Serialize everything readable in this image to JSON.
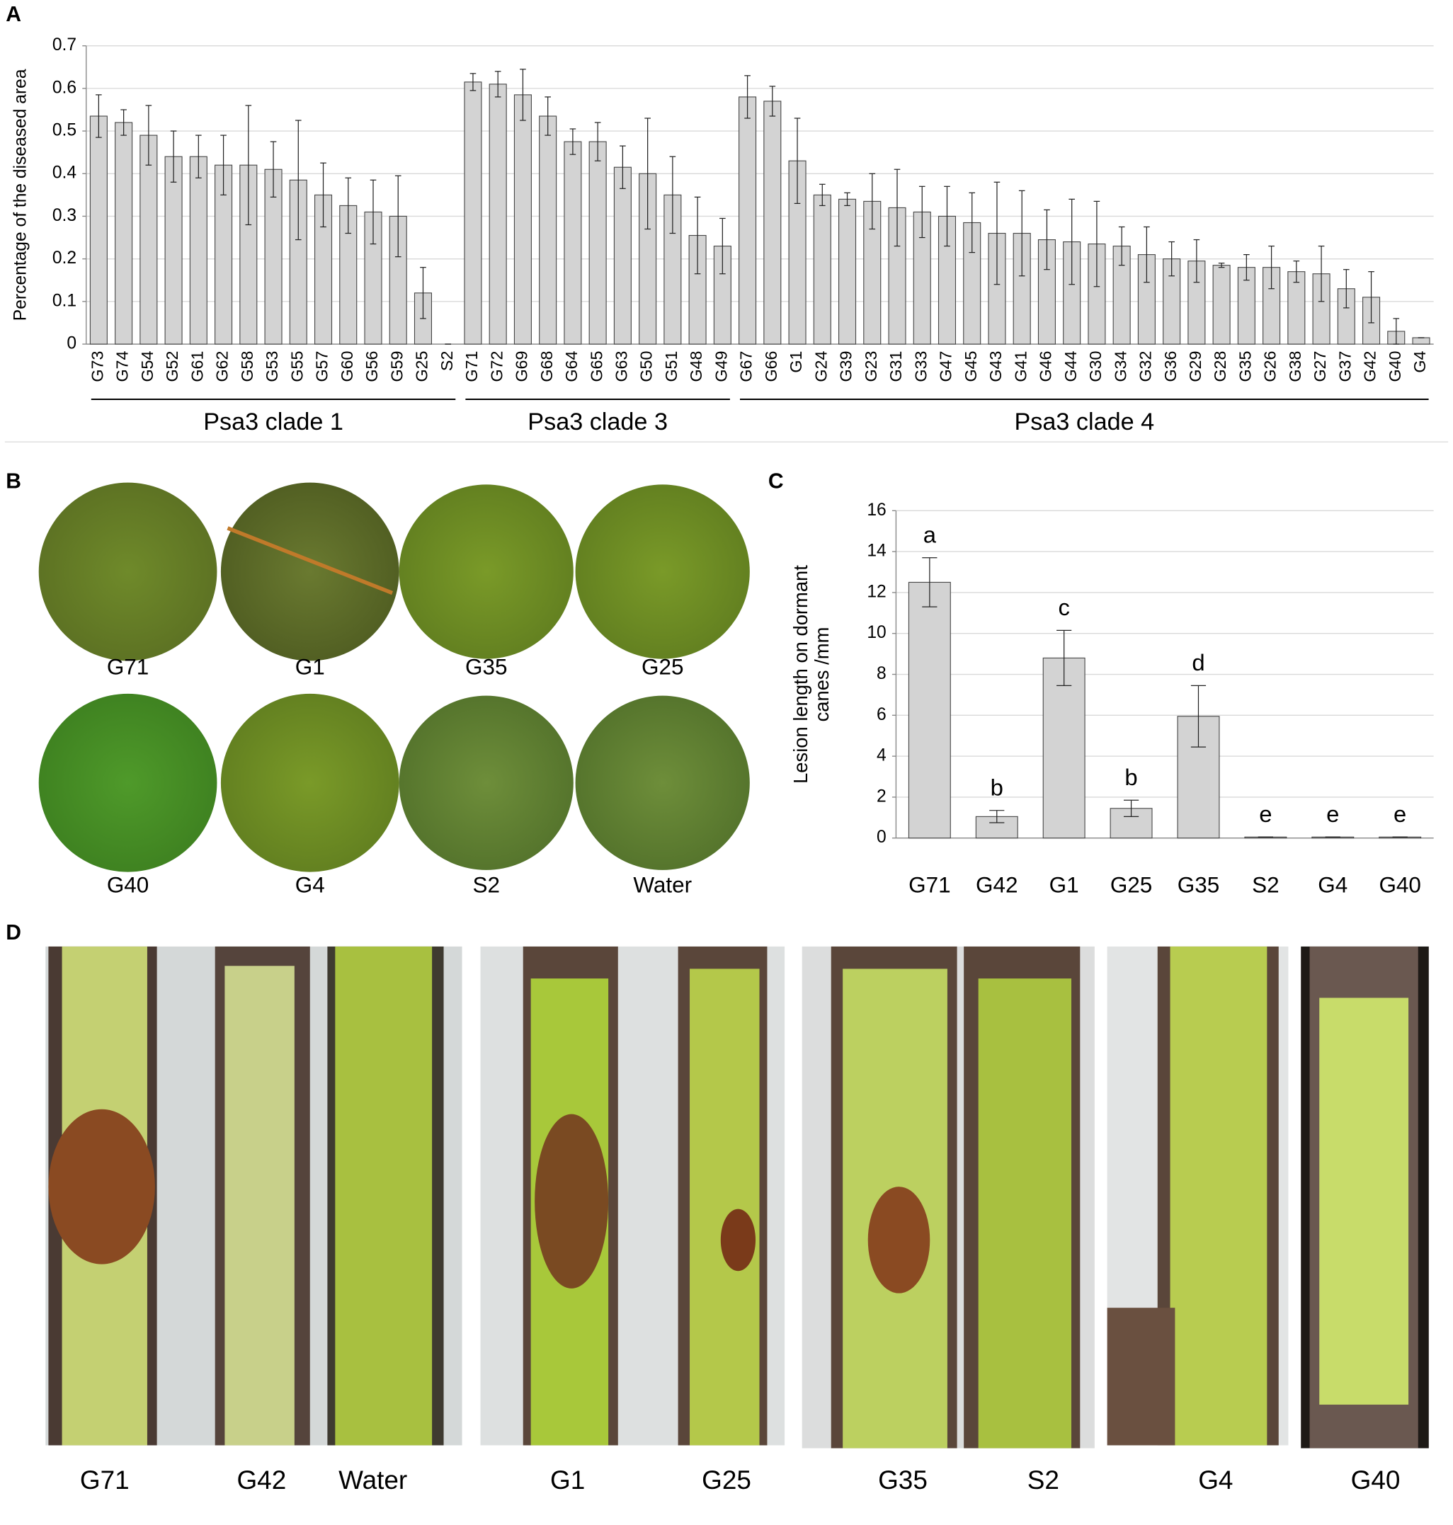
{
  "chart_data": [
    {
      "type": "bar",
      "panel": "A",
      "y_label": "Percentage of the diseased area",
      "ylim": [
        0,
        0.7
      ],
      "yticks": [
        0,
        0.1,
        0.2,
        0.3,
        0.4,
        0.5,
        0.6,
        0.7
      ],
      "grid": true,
      "color": "#d3d3d3",
      "groups": [
        {
          "name": "Psa3 clade 1",
          "categories": [
            "G73",
            "G74",
            "G54",
            "G52",
            "G61",
            "G62",
            "G58",
            "G53",
            "G55",
            "G57",
            "G60",
            "G56",
            "G59",
            "G25",
            "S2"
          ],
          "values": [
            0.535,
            0.52,
            0.49,
            0.44,
            0.44,
            0.42,
            0.42,
            0.41,
            0.385,
            0.35,
            0.325,
            0.31,
            0.3,
            0.12,
            0
          ],
          "errors": [
            0.05,
            0.03,
            0.07,
            0.06,
            0.05,
            0.07,
            0.14,
            0.065,
            0.14,
            0.075,
            0.065,
            0.075,
            0.095,
            0.06,
            0
          ]
        },
        {
          "name": "Psa3 clade 3",
          "categories": [
            "G71",
            "G72",
            "G69",
            "G68",
            "G64",
            "G65",
            "G63",
            "G50",
            "G51",
            "G48",
            "G49"
          ],
          "values": [
            0.615,
            0.61,
            0.585,
            0.535,
            0.475,
            0.475,
            0.415,
            0.4,
            0.35,
            0.255,
            0.23
          ],
          "errors": [
            0.02,
            0.03,
            0.06,
            0.045,
            0.03,
            0.045,
            0.05,
            0.13,
            0.09,
            0.09,
            0.065
          ]
        },
        {
          "name": "Psa3 clade 4",
          "categories": [
            "G67",
            "G66",
            "G1",
            "G24",
            "G39",
            "G23",
            "G31",
            "G33",
            "G47",
            "G45",
            "G43",
            "G41",
            "G46",
            "G44",
            "G30",
            "G34",
            "G32",
            "G36",
            "G29",
            "G28",
            "G35",
            "G26",
            "G38",
            "G27",
            "G37",
            "G42",
            "G40",
            "G4"
          ],
          "values": [
            0.58,
            0.57,
            0.43,
            0.35,
            0.34,
            0.335,
            0.32,
            0.31,
            0.3,
            0.285,
            0.26,
            0.26,
            0.245,
            0.24,
            0.235,
            0.23,
            0.21,
            0.2,
            0.195,
            0.185,
            0.18,
            0.18,
            0.17,
            0.165,
            0.13,
            0.11,
            0.03,
            0.015
          ],
          "errors": [
            0.05,
            0.035,
            0.1,
            0.025,
            0.015,
            0.065,
            0.09,
            0.06,
            0.07,
            0.07,
            0.12,
            0.1,
            0.07,
            0.1,
            0.1,
            0.045,
            0.065,
            0.04,
            0.05,
            0.005,
            0.03,
            0.05,
            0.025,
            0.065,
            0.045,
            0.06,
            0.03,
            0
          ]
        }
      ]
    },
    {
      "type": "bar",
      "panel": "C",
      "y_label": [
        "Lesion length on dormant",
        "canes /mm"
      ],
      "ylim": [
        0,
        16
      ],
      "yticks": [
        0,
        2,
        4,
        6,
        8,
        10,
        12,
        14,
        16
      ],
      "grid": true,
      "color": "#d3d3d3",
      "categories": [
        "G71",
        "G42",
        "G1",
        "G25",
        "G35",
        "S2",
        "G4",
        "G40"
      ],
      "values": [
        12.5,
        1.05,
        8.8,
        1.45,
        5.95,
        0.05,
        0.05,
        0.05
      ],
      "errors": [
        1.2,
        0.3,
        1.35,
        0.4,
        1.5,
        0,
        0,
        0
      ],
      "letters": [
        "a",
        "b",
        "c",
        "b",
        "d",
        "e",
        "e",
        "e"
      ]
    }
  ],
  "panel_b": {
    "panel": "B",
    "labels": [
      "G71",
      "G1",
      "G35",
      "G25",
      "G40",
      "G4",
      "S2",
      "Water"
    ]
  },
  "panel_d": {
    "panel": "D",
    "labels": [
      "G71",
      "G42",
      "Water",
      "G1",
      "G25",
      "G35",
      "S2",
      "G4",
      "G40"
    ]
  }
}
